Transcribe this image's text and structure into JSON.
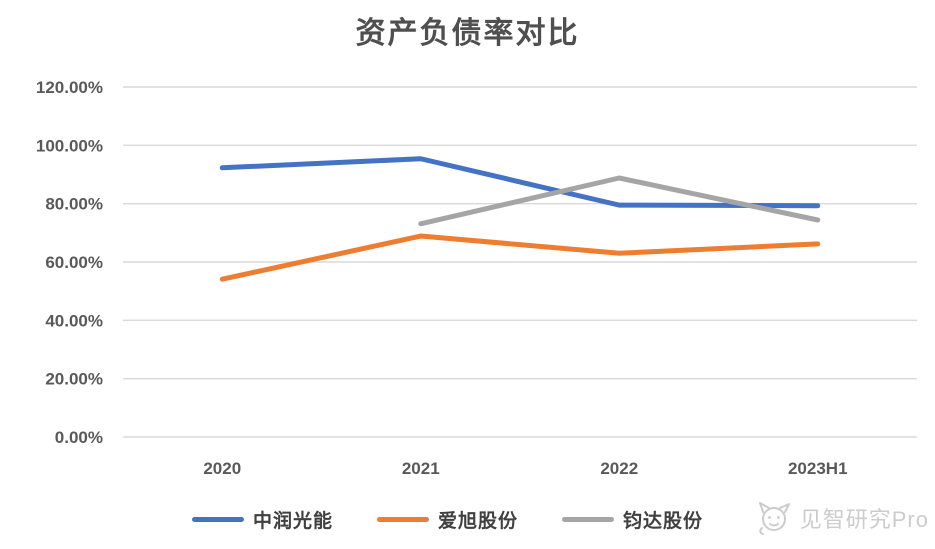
{
  "chart_data": {
    "type": "line",
    "title": "资产负债率对比",
    "categories": [
      "2020",
      "2021",
      "2022",
      "2023H1"
    ],
    "series": [
      {
        "name": "中润光能",
        "color": "#4472C4",
        "values": [
          92.3,
          95.4,
          79.5,
          79.3
        ]
      },
      {
        "name": "爱旭股份",
        "color": "#ED7D31",
        "values": [
          54.1,
          68.9,
          63.0,
          66.2
        ]
      },
      {
        "name": "钧达股份",
        "color": "#A5A5A5",
        "values": [
          null,
          73.1,
          88.8,
          74.4
        ]
      }
    ],
    "y_axis": {
      "min": 0,
      "max": 120,
      "step": 20,
      "tick_labels": [
        "0.00%",
        "20.00%",
        "40.00%",
        "60.00%",
        "80.00%",
        "100.00%",
        "120.00%"
      ],
      "format": "percent"
    },
    "xlabel": "",
    "ylabel": "",
    "grid": true,
    "legend_position": "bottom"
  },
  "watermark": {
    "label": "见智研究Pro",
    "icon": "cat-logo-icon"
  },
  "colors": {
    "gridline": "#D9D9D9",
    "axis_text": "#595959",
    "title_text": "#4F4F4F",
    "watermark": "#CCCCCC"
  }
}
